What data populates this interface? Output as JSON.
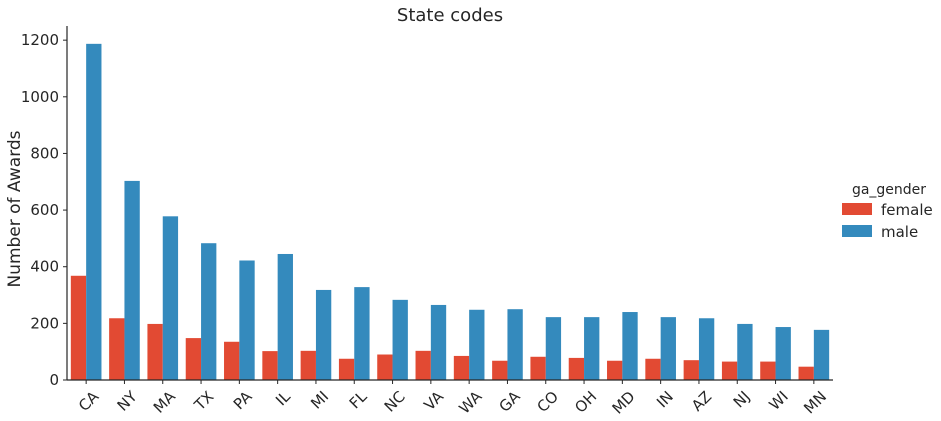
{
  "chart_data": {
    "type": "bar",
    "title": "State codes",
    "xlabel": "",
    "ylabel": "Number of Awards",
    "ylim": [
      0,
      1250
    ],
    "yticks": [
      0,
      200,
      400,
      600,
      800,
      1000,
      1200
    ],
    "grid": false,
    "legend": {
      "title": "ga_gender",
      "placement": "right"
    },
    "categories": [
      "CA",
      "NY",
      "MA",
      "TX",
      "PA",
      "IL",
      "MI",
      "FL",
      "NC",
      "VA",
      "WA",
      "GA",
      "CO",
      "OH",
      "MD",
      "IN",
      "AZ",
      "NJ",
      "WI",
      "MN"
    ],
    "series": [
      {
        "name": "female",
        "color": "#e24a33",
        "values": [
          368,
          218,
          198,
          148,
          135,
          102,
          103,
          75,
          90,
          103,
          85,
          68,
          82,
          78,
          68,
          75,
          70,
          65,
          65,
          47
        ]
      },
      {
        "name": "male",
        "color": "#348abd",
        "values": [
          1187,
          703,
          578,
          483,
          422,
          445,
          318,
          328,
          283,
          265,
          248,
          250,
          222,
          222,
          240,
          222,
          218,
          198,
          187,
          177
        ]
      }
    ]
  }
}
